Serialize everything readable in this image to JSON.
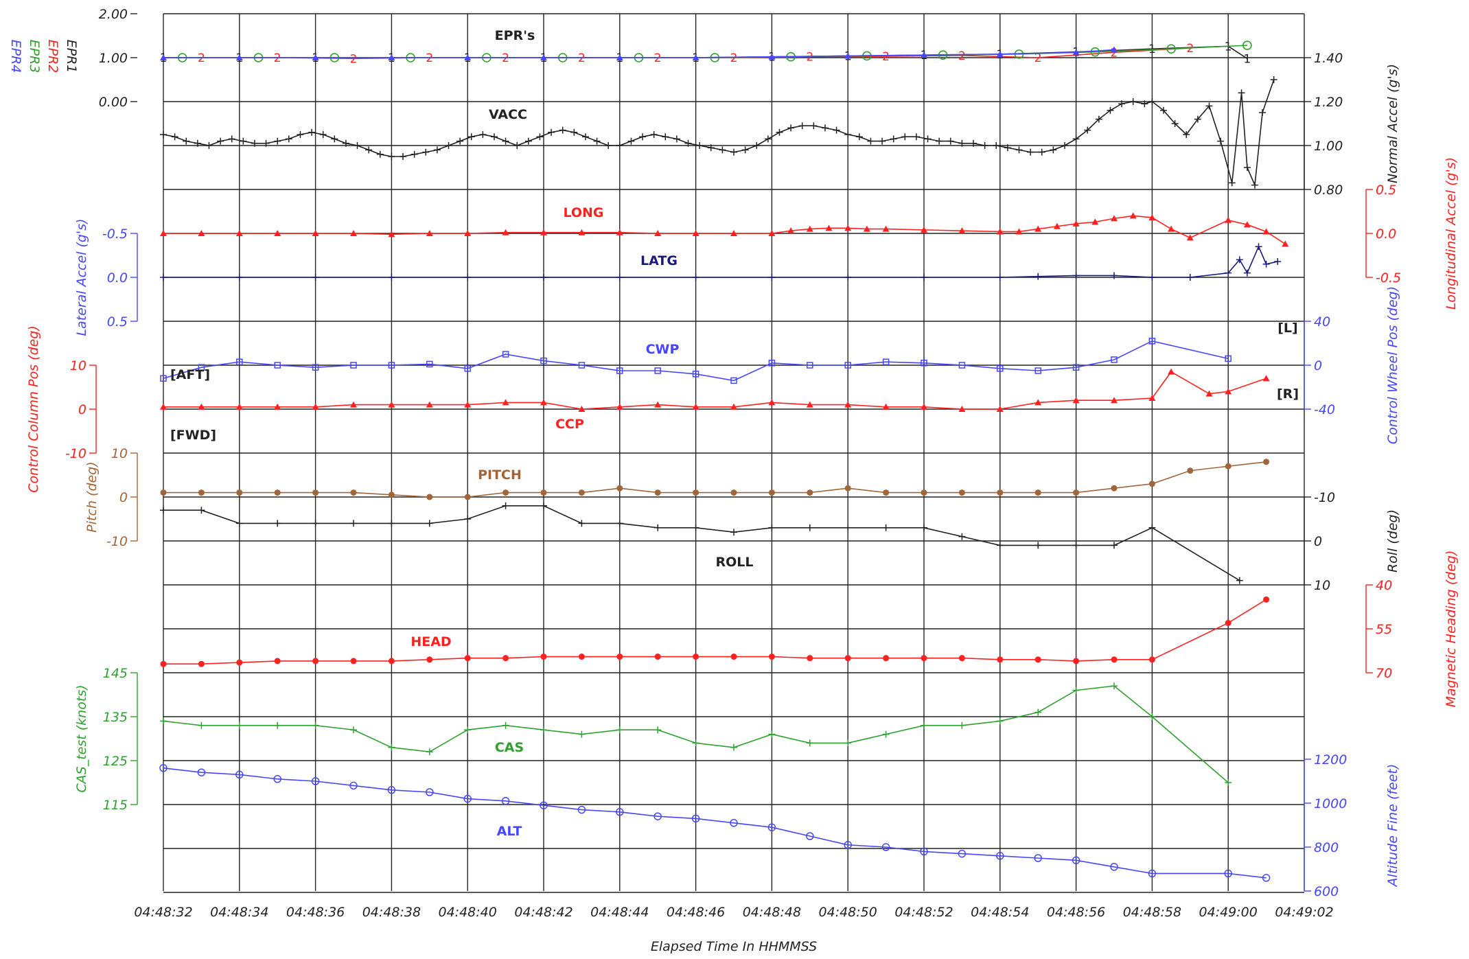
{
  "chart_data": {
    "type": "line",
    "xlabel": "Elapsed Time In HHMMSS",
    "x_ticks": [
      "04:48:32",
      "04:48:34",
      "04:48:36",
      "04:48:38",
      "04:48:40",
      "04:48:42",
      "04:48:44",
      "04:48:46",
      "04:48:48",
      "04:48:50",
      "04:48:52",
      "04:48:54",
      "04:48:56",
      "04:48:58",
      "04:49:00",
      "04:49:02"
    ],
    "xlim": [
      32,
      62
    ],
    "grid": true,
    "colors": {
      "black": "#222222",
      "red": "#ff2020",
      "green": "#30a030",
      "blue": "#4646ff",
      "brown": "#a0663a",
      "darkblue": "#1a1a7a"
    },
    "series": [
      {
        "name": "EPR's",
        "label": "EPR's",
        "legend": [
          "EPR4",
          "EPR3",
          "EPR2",
          "EPR1"
        ],
        "axis_label": "",
        "ticks": [
          "2.00",
          "1.00",
          "0.00"
        ],
        "ylim": [
          0,
          2
        ],
        "lines": [
          {
            "name": "EPR1",
            "marker": "1",
            "color": "black",
            "x": [
              32,
              34,
              36,
              38,
              40,
              42,
              44,
              46,
              48,
              50,
              52,
              54,
              56,
              58,
              60,
              60.5
            ],
            "y": [
              1.0,
              1.0,
              1.0,
              1.0,
              1.0,
              1.0,
              1.0,
              1.0,
              1.02,
              1.04,
              1.06,
              1.08,
              1.13,
              1.2,
              1.26,
              0.98
            ]
          },
          {
            "name": "EPR2",
            "marker": "2",
            "color": "red",
            "x": [
              33,
              35,
              37,
              39,
              41,
              43,
              45,
              47,
              49,
              51,
              53,
              55,
              57,
              59
            ],
            "y": [
              1.0,
              1.0,
              0.98,
              1.0,
              1.0,
              1.0,
              1.0,
              1.0,
              1.02,
              1.03,
              1.05,
              1.0,
              1.12,
              1.22
            ]
          },
          {
            "name": "EPR3",
            "marker": "o",
            "color": "green",
            "x": [
              32.5,
              34.5,
              36.5,
              38.5,
              40.5,
              42.5,
              44.5,
              46.5,
              48.5,
              50.5,
              52.5,
              54.5,
              56.5,
              58.5,
              60.5
            ],
            "y": [
              1.0,
              1.0,
              1.0,
              1.0,
              1.0,
              1.0,
              1.0,
              1.0,
              1.02,
              1.04,
              1.06,
              1.08,
              1.13,
              1.2,
              1.28
            ]
          },
          {
            "name": "EPR4",
            "marker": "tri",
            "color": "blue",
            "x": [
              32,
              34,
              36,
              38,
              40,
              42,
              44,
              46,
              48,
              50,
              52,
              54,
              56,
              57
            ],
            "y": [
              1.0,
              1.0,
              1.0,
              1.0,
              1.0,
              1.0,
              1.0,
              1.0,
              1.02,
              1.04,
              1.06,
              1.08,
              1.12,
              1.18
            ]
          }
        ]
      },
      {
        "name": "VACC",
        "label": "VACC",
        "axis_label": "Normal Accel (g's)",
        "ticks": [
          "1.40",
          "1.20",
          "1.00",
          "0.80"
        ],
        "ylim": [
          0.8,
          1.4
        ],
        "color": "black",
        "marker": "plus",
        "x": [
          32,
          32.3,
          32.6,
          32.9,
          33.2,
          33.5,
          33.8,
          34.1,
          34.4,
          34.7,
          35,
          35.3,
          35.6,
          35.9,
          36.2,
          36.5,
          36.8,
          37.1,
          37.4,
          37.7,
          38,
          38.3,
          38.6,
          38.9,
          39.2,
          39.5,
          39.8,
          40.1,
          40.4,
          40.7,
          41,
          41.3,
          41.6,
          41.9,
          42.2,
          42.5,
          42.8,
          43.1,
          43.4,
          43.7,
          44,
          44.3,
          44.6,
          44.9,
          45.2,
          45.5,
          45.8,
          46.1,
          46.4,
          46.7,
          47,
          47.3,
          47.6,
          47.9,
          48.2,
          48.5,
          48.8,
          49.1,
          49.4,
          49.7,
          50,
          50.3,
          50.6,
          50.9,
          51.2,
          51.5,
          51.8,
          52.1,
          52.4,
          52.7,
          53,
          53.3,
          53.6,
          53.9,
          54.2,
          54.5,
          54.8,
          55.1,
          55.4,
          55.7,
          56,
          56.3,
          56.6,
          56.9,
          57.2,
          57.5,
          57.8,
          58,
          58.3,
          58.6,
          58.9,
          59.2,
          59.5,
          59.8,
          60.1,
          60.35,
          60.5,
          60.7,
          60.9,
          61.2
        ],
        "y": [
          1.05,
          1.04,
          1.02,
          1.01,
          1.0,
          1.02,
          1.03,
          1.02,
          1.01,
          1.01,
          1.02,
          1.03,
          1.05,
          1.06,
          1.05,
          1.03,
          1.01,
          1.0,
          0.98,
          0.96,
          0.95,
          0.95,
          0.96,
          0.97,
          0.98,
          1.0,
          1.02,
          1.04,
          1.05,
          1.04,
          1.02,
          1.0,
          1.02,
          1.04,
          1.06,
          1.07,
          1.06,
          1.04,
          1.02,
          1.0,
          1.0,
          1.02,
          1.04,
          1.05,
          1.04,
          1.03,
          1.01,
          1.0,
          0.99,
          0.98,
          0.97,
          0.98,
          1.0,
          1.03,
          1.06,
          1.08,
          1.09,
          1.09,
          1.08,
          1.07,
          1.05,
          1.04,
          1.02,
          1.02,
          1.03,
          1.04,
          1.04,
          1.03,
          1.02,
          1.02,
          1.01,
          1.01,
          1.0,
          1.0,
          0.99,
          0.98,
          0.97,
          0.97,
          0.98,
          1.0,
          1.03,
          1.07,
          1.12,
          1.16,
          1.19,
          1.2,
          1.19,
          1.2,
          1.16,
          1.1,
          1.05,
          1.12,
          1.18,
          1.02,
          0.83,
          1.24,
          0.9,
          0.82,
          1.15,
          1.3
        ]
      },
      {
        "name": "LONG",
        "label": "LONG",
        "axis_label": "Longitudinal Accel (g's)",
        "ticks": [
          "0.5",
          "0.0",
          "-0.5"
        ],
        "ylim": [
          -0.5,
          0.5
        ],
        "color": "red",
        "marker": "tri",
        "x": [
          32,
          33,
          34,
          35,
          36,
          37,
          38,
          39,
          40,
          41,
          42,
          43,
          44,
          45,
          46,
          47,
          48,
          48.5,
          49,
          49.5,
          50,
          50.5,
          51,
          52,
          53,
          54,
          54.5,
          55,
          55.5,
          56,
          56.5,
          57,
          57.5,
          58,
          58.5,
          59,
          60,
          60.5,
          61,
          61.5
        ],
        "y": [
          0.0,
          0.0,
          0.0,
          0.0,
          0.0,
          0.0,
          -0.01,
          0.0,
          0.0,
          0.01,
          0.01,
          0.01,
          0.01,
          0.0,
          0.0,
          0.0,
          0.0,
          0.03,
          0.05,
          0.06,
          0.06,
          0.05,
          0.05,
          0.04,
          0.03,
          0.02,
          0.02,
          0.05,
          0.08,
          0.11,
          0.13,
          0.17,
          0.2,
          0.18,
          0.05,
          -0.05,
          0.15,
          0.1,
          0.02,
          -0.12
        ]
      },
      {
        "name": "LATG",
        "label": "LATG",
        "axis_label": "Lateral Accel (g's)",
        "ticks": [
          "-0.5",
          "0.0",
          "0.5"
        ],
        "ylim": [
          0.5,
          -0.5
        ],
        "color": "darkblue",
        "marker": "plus",
        "x": [
          32,
          34,
          36,
          38,
          40,
          42,
          44,
          46,
          48,
          50,
          52,
          54,
          55,
          56,
          57,
          58,
          59,
          60,
          60.3,
          60.5,
          60.8,
          61,
          61.3
        ],
        "y": [
          0.0,
          0.0,
          0.0,
          0.0,
          0.0,
          0.0,
          0.0,
          0.0,
          0.0,
          0.0,
          0.0,
          0.0,
          -0.01,
          -0.02,
          -0.02,
          0.0,
          0.0,
          -0.05,
          -0.2,
          -0.05,
          -0.35,
          -0.15,
          -0.18
        ]
      },
      {
        "name": "CWP",
        "label": "CWP",
        "axis_label": "Control Wheel Pos (deg)",
        "ticks": [
          "40",
          "0",
          "-40"
        ],
        "ylim": [
          -40,
          40
        ],
        "color": "blue",
        "marker": "square",
        "annotations": [
          "[L]",
          "[R]"
        ],
        "x": [
          32,
          33,
          34,
          35,
          36,
          37,
          38,
          39,
          40,
          41,
          42,
          43,
          44,
          45,
          46,
          47,
          48,
          49,
          50,
          51,
          52,
          53,
          54,
          55,
          56,
          57,
          58,
          60
        ],
        "y": [
          -12,
          -2,
          3,
          0,
          -2,
          0,
          0,
          1,
          -3,
          10,
          4,
          0,
          -5,
          -5,
          -8,
          -14,
          2,
          0,
          0,
          3,
          2,
          0,
          -3,
          -5,
          -2,
          5,
          22,
          6
        ]
      },
      {
        "name": "CCP",
        "label": "CCP",
        "axis_label": "Control Column Pos (deg)",
        "ticks": [
          "10",
          "0",
          "-10"
        ],
        "ylim": [
          -10,
          10
        ],
        "color": "red",
        "marker": "tri",
        "annotations": [
          "[AFT]",
          "[FWD]"
        ],
        "x": [
          32,
          33,
          34,
          35,
          36,
          37,
          38,
          39,
          40,
          41,
          42,
          43,
          44,
          45,
          46,
          47,
          48,
          49,
          50,
          51,
          52,
          53,
          54,
          55,
          56,
          57,
          58,
          58.5,
          59.5,
          60,
          61
        ],
        "y": [
          0.5,
          0.5,
          0.5,
          0.5,
          0.5,
          1,
          1,
          1,
          1,
          1.5,
          1.5,
          0,
          0.5,
          1,
          0.5,
          0.5,
          1.5,
          1,
          1,
          0.5,
          0.5,
          0,
          0,
          1.5,
          2,
          2,
          2.5,
          8.5,
          3.5,
          4,
          7
        ]
      },
      {
        "name": "PITCH",
        "label": "PITCH",
        "axis_label": "Pitch (deg)",
        "ticks": [
          "10",
          "0",
          "-10"
        ],
        "ylim": [
          -10,
          10
        ],
        "color": "brown",
        "marker": "dot",
        "x": [
          32,
          33,
          34,
          35,
          36,
          37,
          38,
          39,
          40,
          41,
          42,
          43,
          44,
          45,
          46,
          47,
          48,
          49,
          50,
          51,
          52,
          53,
          54,
          55,
          56,
          57,
          58,
          59,
          60,
          61
        ],
        "y": [
          1,
          1,
          1,
          1,
          1,
          1,
          0.5,
          0,
          0,
          1,
          1,
          1,
          2,
          1,
          1,
          1,
          1,
          1,
          2,
          1,
          1,
          1,
          1,
          1,
          1,
          2,
          3,
          6,
          7,
          8
        ]
      },
      {
        "name": "ROLL",
        "label": "ROLL",
        "axis_label": "Roll (deg)",
        "ticks": [
          "-10",
          "0",
          "10"
        ],
        "ylim": [
          10,
          -10
        ],
        "color": "black",
        "marker": "plus",
        "x": [
          32,
          33,
          34,
          35,
          36,
          37,
          38,
          39,
          40,
          41,
          42,
          43,
          44,
          45,
          46,
          47,
          48,
          49,
          50,
          51,
          52,
          53,
          54,
          55,
          56,
          57,
          58,
          60.3
        ],
        "y": [
          -7,
          -7,
          -4,
          -4,
          -4,
          -4,
          -4,
          -4,
          -5,
          -8,
          -8,
          -4,
          -4,
          -3,
          -3,
          -2,
          -3,
          -3,
          -3,
          -3,
          -3,
          -1,
          1,
          1,
          1,
          1,
          -3,
          9
        ]
      },
      {
        "name": "HEAD",
        "label": "HEAD",
        "axis_label": "Magnetic Heading (deg)",
        "ticks": [
          "40",
          "55",
          "70"
        ],
        "ylim": [
          70,
          40
        ],
        "color": "red",
        "marker": "dot",
        "x": [
          32,
          33,
          34,
          35,
          36,
          37,
          38,
          39,
          40,
          41,
          42,
          43,
          44,
          45,
          46,
          47,
          48,
          49,
          50,
          51,
          52,
          53,
          54,
          55,
          56,
          57,
          58,
          60,
          61
        ],
        "y": [
          67,
          67,
          66.5,
          66,
          66,
          66,
          66,
          65.5,
          65,
          65,
          64.5,
          64.5,
          64.5,
          64.5,
          64.5,
          64.5,
          64.5,
          65,
          65,
          65,
          65,
          65,
          65.5,
          65.5,
          66,
          65.5,
          65.5,
          53,
          45
        ]
      },
      {
        "name": "CAS",
        "label": "CAS",
        "axis_label": "CAS_test (knots)",
        "ticks": [
          "145",
          "135",
          "125",
          "115"
        ],
        "ylim": [
          115,
          145
        ],
        "color": "green",
        "marker": "plus",
        "x": [
          32,
          33,
          34,
          35,
          36,
          37,
          38,
          39,
          40,
          41,
          42,
          43,
          44,
          45,
          46,
          47,
          48,
          49,
          50,
          51,
          52,
          53,
          54,
          55,
          56,
          57,
          58,
          60
        ],
        "y": [
          134,
          133,
          133,
          133,
          133,
          132,
          128,
          127,
          132,
          133,
          132,
          131,
          132,
          132,
          129,
          128,
          131,
          129,
          129,
          131,
          133,
          133,
          134,
          136,
          141,
          142,
          135,
          120
        ]
      },
      {
        "name": "ALT",
        "label": "ALT",
        "axis_label": "Altitude Fine (feet)",
        "ticks": [
          "1200",
          "1000",
          "800",
          "600"
        ],
        "ylim": [
          600,
          1200
        ],
        "color": "blue",
        "marker": "circle",
        "x": [
          32,
          33,
          34,
          35,
          36,
          37,
          38,
          39,
          40,
          41,
          42,
          43,
          44,
          45,
          46,
          47,
          48,
          49,
          50,
          51,
          52,
          53,
          54,
          55,
          56,
          57,
          58,
          60,
          61
        ],
        "y": [
          1160,
          1140,
          1130,
          1110,
          1100,
          1080,
          1060,
          1050,
          1020,
          1010,
          990,
          970,
          960,
          940,
          930,
          910,
          890,
          850,
          810,
          800,
          780,
          770,
          760,
          750,
          740,
          710,
          680,
          680,
          660
        ]
      }
    ]
  }
}
